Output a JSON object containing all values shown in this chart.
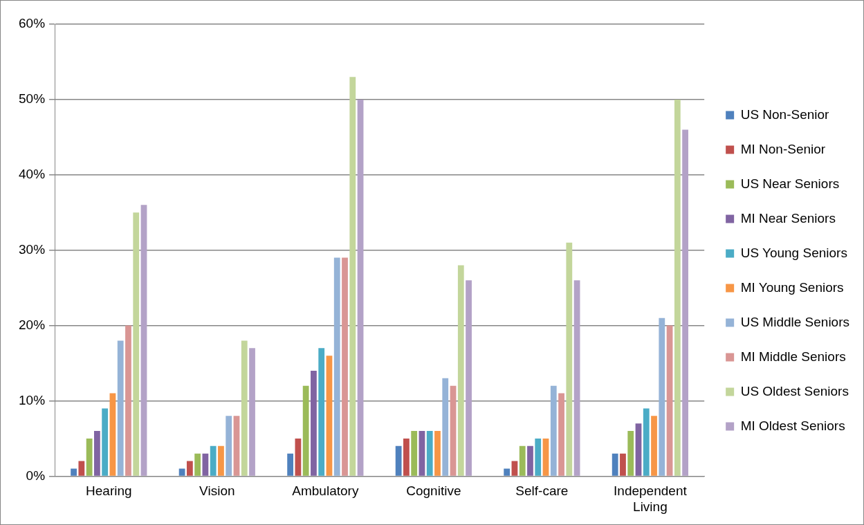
{
  "chart_data": {
    "type": "bar",
    "categories": [
      "Hearing",
      "Vision",
      "Ambulatory",
      "Cognitive",
      "Self-care",
      "Independent Living"
    ],
    "series": [
      {
        "name": "US Non-Senior",
        "color": "#4f81bd",
        "values": [
          1,
          1,
          3,
          4,
          1,
          3
        ]
      },
      {
        "name": "MI Non-Senior",
        "color": "#c0504d",
        "values": [
          2,
          2,
          5,
          5,
          2,
          3
        ]
      },
      {
        "name": "US Near Seniors",
        "color": "#9bbb59",
        "values": [
          5,
          3,
          12,
          6,
          4,
          6
        ]
      },
      {
        "name": "MI Near Seniors",
        "color": "#8064a2",
        "values": [
          6,
          3,
          14,
          6,
          4,
          7
        ]
      },
      {
        "name": "US Young Seniors",
        "color": "#4bacc6",
        "values": [
          9,
          4,
          17,
          6,
          5,
          9
        ]
      },
      {
        "name": "MI Young Seniors",
        "color": "#f79646",
        "values": [
          11,
          4,
          16,
          6,
          5,
          8
        ]
      },
      {
        "name": "US Middle Seniors",
        "color": "#95b3d7",
        "values": [
          18,
          8,
          29,
          13,
          12,
          21
        ]
      },
      {
        "name": "MI Middle Seniors",
        "color": "#d99694",
        "values": [
          20,
          8,
          29,
          12,
          11,
          20
        ]
      },
      {
        "name": "US Oldest Seniors",
        "color": "#c3d69b",
        "values": [
          35,
          18,
          53,
          28,
          31,
          50
        ]
      },
      {
        "name": "MI Oldest Seniors",
        "color": "#b3a2c7",
        "values": [
          36,
          17,
          50,
          26,
          26,
          46
        ]
      }
    ],
    "ylim": [
      0,
      60
    ],
    "yticks": [
      {
        "value": 0,
        "label": "0%"
      },
      {
        "value": 10,
        "label": "10%"
      },
      {
        "value": 20,
        "label": "20%"
      },
      {
        "value": 30,
        "label": "30%"
      },
      {
        "value": 40,
        "label": "40%"
      },
      {
        "value": 50,
        "label": "50%"
      },
      {
        "value": 60,
        "label": "60%"
      }
    ],
    "grid": "y",
    "legend": "right"
  }
}
